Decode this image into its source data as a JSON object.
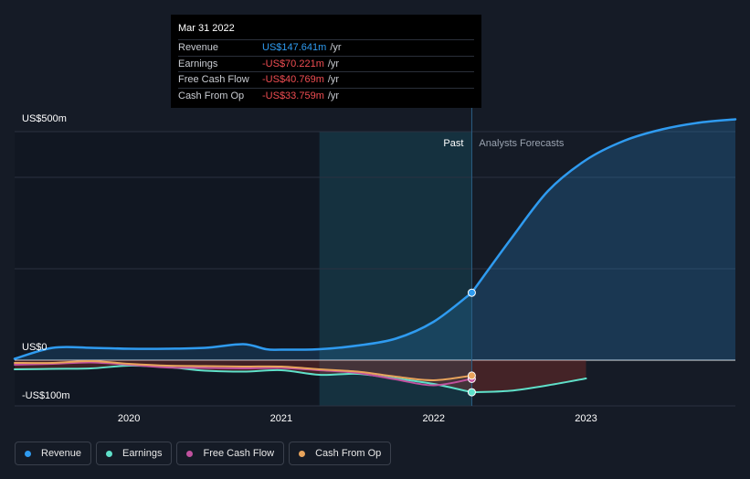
{
  "tooltip": {
    "date": "Mar 31 2022",
    "rows": [
      {
        "label": "Revenue",
        "value": "US$147.641m",
        "unit": "/yr",
        "color": "#2f9bf0"
      },
      {
        "label": "Earnings",
        "value": "-US$70.221m",
        "unit": "/yr",
        "color": "#f04d52"
      },
      {
        "label": "Free Cash Flow",
        "value": "-US$40.769m",
        "unit": "/yr",
        "color": "#f04d52"
      },
      {
        "label": "Cash From Op",
        "value": "-US$33.759m",
        "unit": "/yr",
        "color": "#f04d52"
      }
    ]
  },
  "legend": [
    {
      "label": "Revenue",
      "color": "#2f9bf0"
    },
    {
      "label": "Earnings",
      "color": "#5fe0c9"
    },
    {
      "label": "Free Cash Flow",
      "color": "#c0519e"
    },
    {
      "label": "Cash From Op",
      "color": "#e8a45c"
    }
  ],
  "chart_data": {
    "type": "line",
    "title": "",
    "ylabels": [
      "US$500m",
      "US$0",
      "-US$100m"
    ],
    "ylim": [
      -100,
      500
    ],
    "xlim": [
      2019.25,
      2023.98
    ],
    "xticks": [
      {
        "value": 2020.0,
        "label": "2020"
      },
      {
        "value": 2021.0,
        "label": "2021"
      },
      {
        "value": 2022.0,
        "label": "2022"
      },
      {
        "value": 2023.0,
        "label": "2023"
      }
    ],
    "past_label": "Past",
    "forecast_label": "Analysts Forecasts",
    "past_region_start": 2021.25,
    "split_x": 2022.25,
    "series": [
      {
        "name": "Revenue",
        "color": "#2f9bf0",
        "points": [
          [
            2019.25,
            3
          ],
          [
            2019.5,
            27
          ],
          [
            2019.75,
            27
          ],
          [
            2020.0,
            25
          ],
          [
            2020.25,
            25
          ],
          [
            2020.5,
            27
          ],
          [
            2020.75,
            35
          ],
          [
            2020.9,
            24
          ],
          [
            2021.0,
            23
          ],
          [
            2021.25,
            24
          ],
          [
            2021.5,
            32
          ],
          [
            2021.75,
            47
          ],
          [
            2022.0,
            84
          ],
          [
            2022.25,
            147.6
          ]
        ]
      },
      {
        "name": "Revenue forecast",
        "color": "#2f9bf0",
        "points": [
          [
            2022.25,
            147.6
          ],
          [
            2022.5,
            262
          ],
          [
            2022.75,
            370
          ],
          [
            2023.0,
            438
          ],
          [
            2023.25,
            480
          ],
          [
            2023.5,
            505
          ],
          [
            2023.75,
            520
          ],
          [
            2023.98,
            527
          ]
        ]
      },
      {
        "name": "Earnings",
        "color": "#5fe0c9",
        "points": [
          [
            2019.25,
            -20
          ],
          [
            2019.5,
            -19
          ],
          [
            2019.75,
            -18
          ],
          [
            2020.0,
            -12
          ],
          [
            2020.25,
            -15
          ],
          [
            2020.5,
            -23
          ],
          [
            2020.75,
            -25
          ],
          [
            2021.0,
            -22
          ],
          [
            2021.25,
            -32
          ],
          [
            2021.5,
            -30
          ],
          [
            2021.75,
            -40
          ],
          [
            2022.0,
            -52
          ],
          [
            2022.25,
            -70.2
          ]
        ]
      },
      {
        "name": "Earnings forecast",
        "color": "#5fe0c9",
        "points": [
          [
            2022.25,
            -70.2
          ],
          [
            2022.5,
            -67
          ],
          [
            2022.75,
            -55
          ],
          [
            2023.0,
            -40
          ]
        ]
      },
      {
        "name": "Free Cash Flow",
        "color": "#c0519e",
        "points": [
          [
            2019.25,
            -10
          ],
          [
            2019.5,
            -8
          ],
          [
            2019.75,
            -5
          ],
          [
            2020.0,
            -10
          ],
          [
            2020.25,
            -16
          ],
          [
            2020.5,
            -17
          ],
          [
            2020.75,
            -18
          ],
          [
            2021.0,
            -17
          ],
          [
            2021.25,
            -22
          ],
          [
            2021.5,
            -28
          ],
          [
            2021.75,
            -42
          ],
          [
            2022.0,
            -55
          ],
          [
            2022.25,
            -40.8
          ]
        ]
      },
      {
        "name": "Cash From Op",
        "color": "#e8a45c",
        "points": [
          [
            2019.25,
            -6
          ],
          [
            2019.5,
            -6
          ],
          [
            2019.75,
            -2
          ],
          [
            2020.0,
            -8
          ],
          [
            2020.25,
            -12
          ],
          [
            2020.5,
            -13
          ],
          [
            2020.75,
            -14
          ],
          [
            2021.0,
            -14
          ],
          [
            2021.25,
            -20
          ],
          [
            2021.5,
            -25
          ],
          [
            2021.75,
            -36
          ],
          [
            2022.0,
            -44
          ],
          [
            2022.25,
            -33.8
          ]
        ]
      }
    ]
  }
}
